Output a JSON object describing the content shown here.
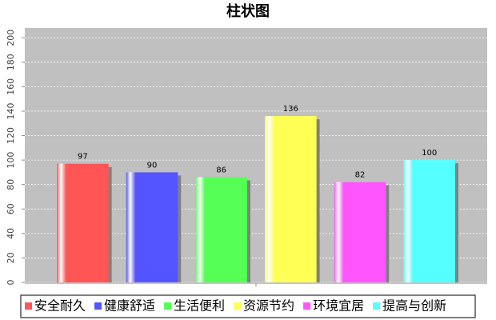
{
  "chart_data": {
    "type": "bar",
    "title": "柱状图",
    "categories": [
      null
    ],
    "series": [
      {
        "name": "安全耐久",
        "color": "#ff5555",
        "values": [
          97
        ]
      },
      {
        "name": "健康舒适",
        "color": "#5555ff",
        "values": [
          90
        ]
      },
      {
        "name": "生活便利",
        "color": "#55ff55",
        "values": [
          86
        ]
      },
      {
        "name": "资源节约",
        "color": "#ffff55",
        "values": [
          136
        ]
      },
      {
        "name": "环境宜居",
        "color": "#ff55ff",
        "values": [
          82
        ]
      },
      {
        "name": "提高与创新",
        "color": "#55ffff",
        "values": [
          100
        ]
      }
    ],
    "ylim": [
      0,
      208
    ],
    "yticks": [
      0,
      20,
      40,
      60,
      80,
      100,
      120,
      140,
      160,
      180,
      200
    ],
    "grid": true,
    "legend": "bottom"
  }
}
